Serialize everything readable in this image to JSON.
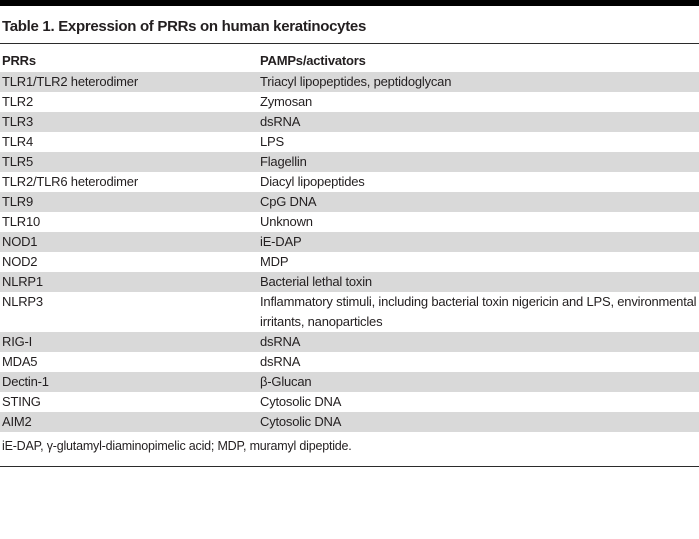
{
  "table": {
    "title": "Table 1. Expression of PRRs on human keratinocytes",
    "columns": [
      "PRRs",
      "PAMPs/activators"
    ],
    "rows": [
      {
        "prr": "TLR1/TLR2 heterodimer",
        "pamp": "Triacyl lipopeptides, peptidoglycan"
      },
      {
        "prr": "TLR2",
        "pamp": "Zymosan"
      },
      {
        "prr": "TLR3",
        "pamp": "dsRNA"
      },
      {
        "prr": "TLR4",
        "pamp": "LPS"
      },
      {
        "prr": "TLR5",
        "pamp": "Flagellin"
      },
      {
        "prr": "TLR2/TLR6 heterodimer",
        "pamp": "Diacyl lipopeptides"
      },
      {
        "prr": "TLR9",
        "pamp": "CpG DNA"
      },
      {
        "prr": "TLR10",
        "pamp": "Unknown"
      },
      {
        "prr": "NOD1",
        "pamp": "iE-DAP"
      },
      {
        "prr": "NOD2",
        "pamp": "MDP"
      },
      {
        "prr": "NLRP1",
        "pamp": "Bacterial lethal toxin"
      },
      {
        "prr": "NLRP3",
        "pamp": "Inflammatory stimuli, including bacterial toxin nigericin and LPS, environmental irritants, nanoparticles"
      },
      {
        "prr": "RIG-I",
        "pamp": "dsRNA"
      },
      {
        "prr": "MDA5",
        "pamp": "dsRNA"
      },
      {
        "prr": "Dectin-1",
        "pamp": "β-Glucan"
      },
      {
        "prr": "STING",
        "pamp": "Cytosolic DNA"
      },
      {
        "prr": "AIM2",
        "pamp": "Cytosolic DNA"
      }
    ],
    "footnote": "iE-DAP, γ-glutamyl-diaminopimelic acid; MDP, muramyl dipeptide."
  },
  "colors": {
    "stripe": "#d9d9d9",
    "text": "#231f20",
    "rule": "#2b2b2b",
    "top_bar": "#000000"
  }
}
